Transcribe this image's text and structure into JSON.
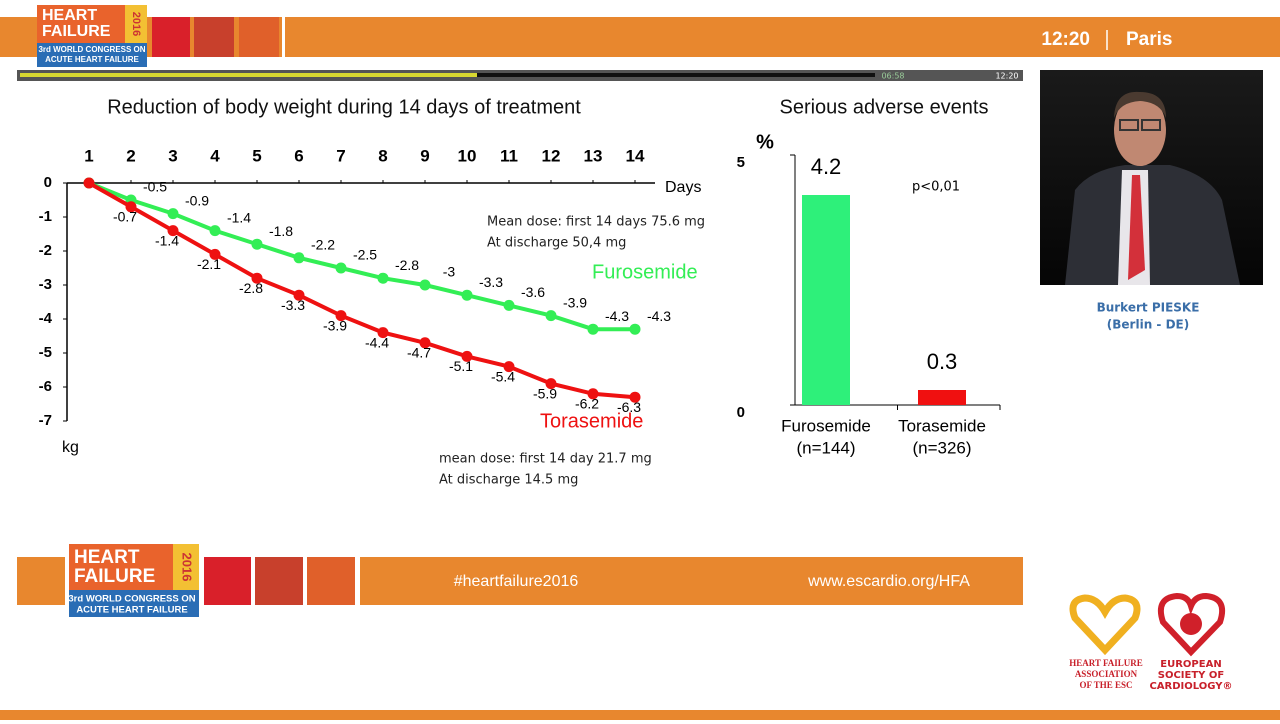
{
  "header": {
    "logo": {
      "line1": "HEART",
      "line2": "FAILURE",
      "year": "2016",
      "line3": "3rd WORLD CONGRESS ON",
      "line4": "ACUTE HEART FAILURE"
    },
    "time": "12:20",
    "city": "Paris"
  },
  "player": {
    "position": "06:58",
    "duration": "12:20"
  },
  "chart_data": [
    {
      "type": "line",
      "title": "Reduction of body weight during 14 days of treatment",
      "x_label": "Days",
      "y_label": "kg",
      "x": [
        1,
        2,
        3,
        4,
        5,
        6,
        7,
        8,
        9,
        10,
        11,
        12,
        13,
        14
      ],
      "xlim": [
        1,
        14
      ],
      "xticks": [
        1,
        2,
        3,
        4,
        5,
        6,
        7,
        8,
        9,
        10,
        11,
        12,
        13,
        14
      ],
      "ylim": [
        -7,
        0
      ],
      "yticks": [
        0,
        -1,
        -2,
        -3,
        -4,
        -5,
        -6,
        -7
      ],
      "series": [
        {
          "name": "Furosemide",
          "color": "#33ee55",
          "values": [
            0,
            -0.5,
            -0.9,
            -1.4,
            -1.8,
            -2.2,
            -2.5,
            -2.8,
            -3,
            -3.3,
            -3.6,
            -3.9,
            -4.3,
            -4.3
          ]
        },
        {
          "name": "Torasemide",
          "color": "#ee1111",
          "values": [
            0,
            -0.7,
            -1.4,
            -2.1,
            -2.8,
            -3.3,
            -3.9,
            -4.4,
            -4.7,
            -5.1,
            -5.4,
            -5.9,
            -6.2,
            -6.3
          ]
        }
      ],
      "annotations": [
        "Mean dose: first 14 days 75.6 mg",
        "At discharge 50,4 mg",
        "mean dose: first 14 day 21.7 mg",
        "At discharge 14.5 mg"
      ]
    },
    {
      "type": "bar",
      "title": "Serious adverse events",
      "y_label": "%",
      "categories": [
        "Furosemide",
        "Torasemide"
      ],
      "category_notes": [
        "(n=144)",
        "(n=326)"
      ],
      "values": [
        4.2,
        0.3
      ],
      "colors": [
        "#2ef07a",
        "#f01010"
      ],
      "ylim": [
        0,
        5
      ],
      "yticks": [
        0,
        5
      ],
      "annotation": "p<0,01"
    }
  ],
  "footer": {
    "hashtag": "#heartfailure2016",
    "url": "www.escardio.org/HFA"
  },
  "speaker": {
    "name": "Burkert PIESKE",
    "affiliation": "(Berlin - DE)"
  },
  "logos": {
    "hfa": [
      "HEART FAILURE",
      "ASSOCIATION",
      "OF THE ESC"
    ],
    "esc": [
      "EUROPEAN",
      "SOCIETY OF",
      "CARDIOLOGY®"
    ]
  }
}
